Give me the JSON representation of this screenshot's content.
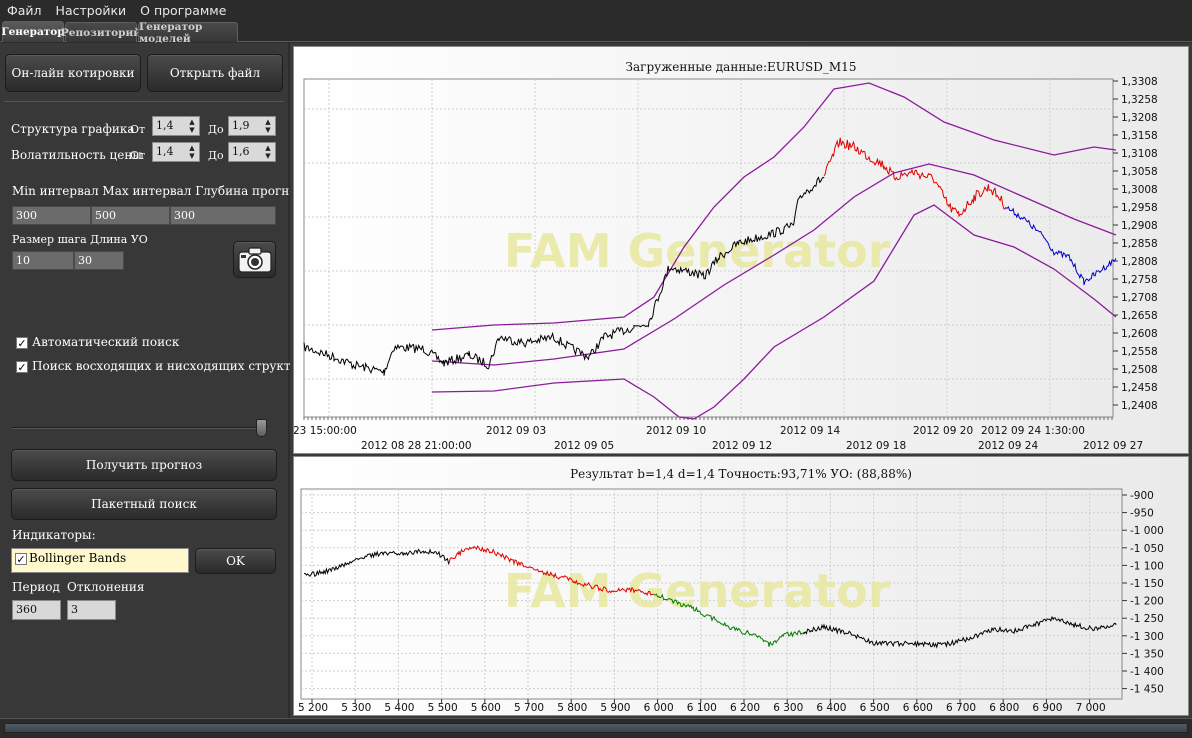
{
  "menu": [
    "Файл",
    "Настройки",
    "О программе"
  ],
  "tabs": [
    "Генератор",
    "Репозиторий",
    "Генератор моделей"
  ],
  "left": {
    "online_btn": "Он-лайн котировки",
    "open_btn": "Открыть файл",
    "structure_label": "Структура графика",
    "volatility_label": "Волатильность цены",
    "from_label": "От",
    "to_label": "До",
    "structure_from": "1,4",
    "structure_to": "1,9",
    "volatility_from": "1,4",
    "volatility_to": "1,6",
    "interval_header": "Min интервал Max интервал Глубина прогноза",
    "min_interval": "300",
    "max_interval": "500",
    "depth": "300",
    "step_header": "Размер шага Длина УО",
    "step": "10",
    "uo_length": "30",
    "auto_search": "Автоматический поиск",
    "updown_search": "Поиск восходящих и нисходящих структур",
    "get_forecast_btn": "Получить прогноз",
    "batch_btn": "Пакетный поиск",
    "indicators_label": "Индикаторы:",
    "indicator": "Bollinger Bands",
    "ok_btn": "OK",
    "period_label": "Период",
    "deviation_label": "Отклонения",
    "period": "360",
    "deviation": "3"
  },
  "colors": {
    "price": "#000000",
    "red_segment": "#e00000",
    "blue_segment": "#0000cc",
    "bollinger": "#8a1c9a",
    "green_segment": "#007a00"
  },
  "top_chart": {
    "title": "Загруженные данные:EURUSD_M15",
    "watermark": "FAM  Generator",
    "yticks": [
      "1,3308",
      "1,3258",
      "1,3208",
      "1,3158",
      "1,3108",
      "1,3058",
      "1,3008",
      "1,2958",
      "1,2908",
      "1,2858",
      "1,2808",
      "1,2758",
      "1,2708",
      "1,2658",
      "1,2608",
      "1,2558",
      "1,2508",
      "1,2458",
      "1,2408"
    ],
    "xlabels_row1": [
      "23 15:00:00",
      "2012 09 03",
      "2012 09 10",
      "2012 09 14",
      "2012 09 20",
      "2012 09 24 1:30:00"
    ],
    "xlabels_row2": [
      "2012 08 28 21:00:00",
      "2012 09 05",
      "2012 09 12",
      "2012 09 18",
      "2012 09 24",
      "2012 09 27"
    ]
  },
  "bottom_chart": {
    "title": "Результат b=1,4 d=1,4  Точность:93,71%  УО: (88,88%)",
    "watermark": "FAM  Generator",
    "yticks": [
      "-900",
      "-950",
      "-1 000",
      "-1 050",
      "-1 100",
      "-1 150",
      "-1 200",
      "-1 250",
      "-1 300",
      "-1 350",
      "-1 400",
      "-1 450"
    ],
    "xticks": [
      "5 200",
      "5 300",
      "5 400",
      "5 500",
      "5 600",
      "5 700",
      "5 800",
      "5 900",
      "6 000",
      "6 100",
      "6 200",
      "6 300",
      "6 400",
      "6 500",
      "6 600",
      "6 700",
      "6 800",
      "6 900",
      "7 000"
    ]
  }
}
